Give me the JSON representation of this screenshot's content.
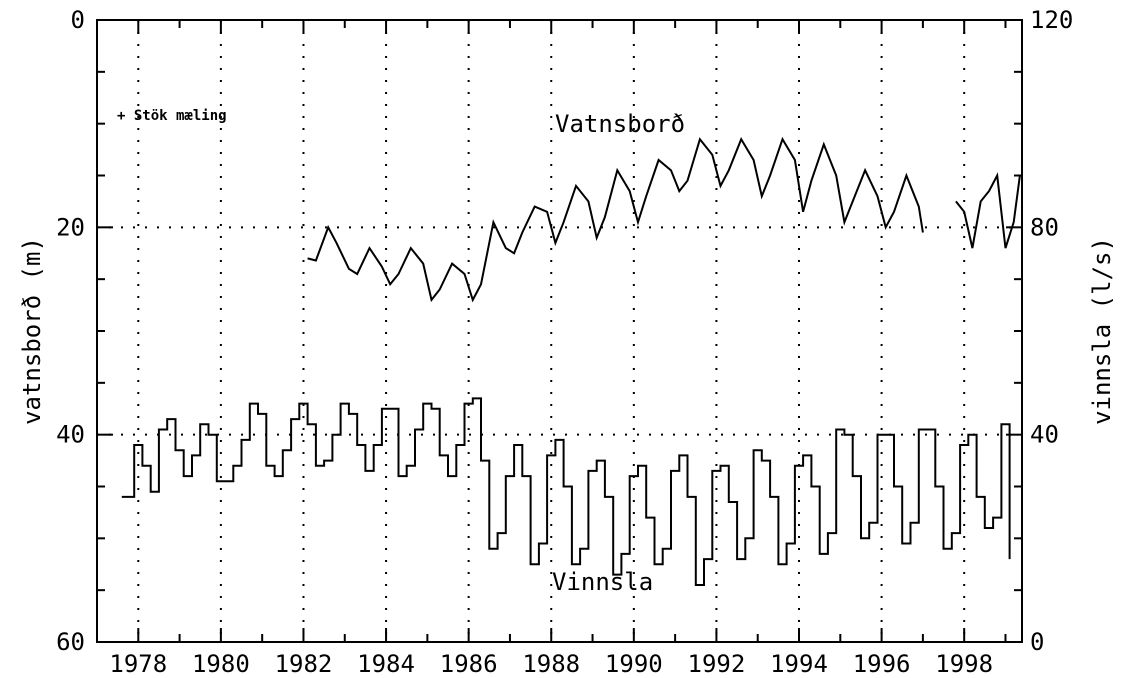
{
  "chart_data": {
    "type": "line",
    "title": "",
    "xlabel": "",
    "ylabel_left": "vatnsborð (m)",
    "ylabel_right": "vinnsla (l/s)",
    "xlim": [
      1977.0,
      1999.4
    ],
    "ylim_left": [
      0,
      60
    ],
    "ylim_left_inverted": true,
    "ylim_right": [
      0,
      120
    ],
    "x_ticks": [
      "1978",
      "1980",
      "1982",
      "1984",
      "1986",
      "1988",
      "1990",
      "1992",
      "1994",
      "1996",
      "1998"
    ],
    "y_left_ticks": [
      "0",
      "20",
      "40",
      "60"
    ],
    "y_right_ticks": [
      "120",
      "80",
      "40",
      "0"
    ],
    "grid": true,
    "annotation": "+ Stök mæling",
    "series": [
      {
        "name": "Vatnsborð",
        "axis": "left",
        "segments": [
          {
            "x": [
              1982.1,
              1982.3,
              1982.6,
              1982.8,
              1983.1,
              1983.3,
              1983.6,
              1983.9,
              1984.1,
              1984.3,
              1984.6,
              1984.9,
              1985.1,
              1985.3,
              1985.6,
              1985.9,
              1986.1,
              1986.3,
              1986.6,
              1986.9,
              1987.1,
              1987.3,
              1987.6,
              1987.9,
              1988.1,
              1988.3,
              1988.6,
              1988.9,
              1989.1,
              1989.3,
              1989.6,
              1989.9,
              1990.1,
              1990.3,
              1990.6,
              1990.9,
              1991.1,
              1991.3,
              1991.6,
              1991.9,
              1992.1,
              1992.3,
              1992.6,
              1992.9,
              1993.1,
              1993.3,
              1993.6,
              1993.9,
              1994.1,
              1994.3,
              1994.6,
              1994.9,
              1995.1,
              1995.3,
              1995.6,
              1995.9,
              1996.1,
              1996.3,
              1996.6,
              1996.9,
              1997.0
            ],
            "y": [
              23.0,
              23.2,
              20.0,
              21.5,
              24.0,
              24.5,
              22.0,
              23.8,
              25.5,
              24.5,
              22.0,
              23.5,
              27.0,
              26.0,
              23.5,
              24.5,
              27.0,
              25.5,
              19.5,
              22.0,
              22.5,
              20.5,
              18.0,
              18.5,
              21.5,
              19.5,
              16.0,
              17.5,
              21.0,
              19.0,
              14.5,
              16.5,
              19.5,
              17.0,
              13.5,
              14.5,
              16.5,
              15.5,
              11.5,
              13.0,
              16.0,
              14.5,
              11.5,
              13.5,
              17.0,
              15.0,
              11.5,
              13.5,
              18.5,
              15.5,
              12.0,
              15.0,
              19.5,
              17.5,
              14.5,
              17.0,
              20.0,
              18.5,
              15.0,
              18.0,
              20.5
            ]
          },
          {
            "x": [
              1997.8,
              1998.0,
              1998.2,
              1998.4,
              1998.6,
              1998.8,
              1999.0,
              1999.2,
              1999.35
            ],
            "y": [
              17.5,
              18.5,
              22.0,
              17.5,
              16.5,
              15.0,
              22.0,
              19.5,
              15.0
            ]
          }
        ]
      },
      {
        "name": "Vinnsla",
        "axis": "right",
        "step": true,
        "segments": [
          {
            "x": [
              1977.6,
              1977.9,
              1978.1,
              1978.3,
              1978.5,
              1978.7,
              1978.9,
              1979.1,
              1979.3,
              1979.5,
              1979.7,
              1979.9,
              1980.1,
              1980.3,
              1980.5,
              1980.7,
              1980.9,
              1981.1,
              1981.3,
              1981.5,
              1981.7,
              1981.9,
              1982.1,
              1982.3,
              1982.5,
              1982.7,
              1982.9,
              1983.1,
              1983.3,
              1983.5,
              1983.7,
              1983.9,
              1984.1,
              1984.3,
              1984.5,
              1984.7,
              1984.9,
              1985.1,
              1985.3,
              1985.5,
              1985.7,
              1985.9,
              1986.1,
              1986.3,
              1986.5,
              1986.7,
              1986.9,
              1987.1,
              1987.3,
              1987.5,
              1987.7,
              1987.9,
              1988.1,
              1988.3,
              1988.5,
              1988.7,
              1988.9,
              1989.1,
              1989.3,
              1989.5,
              1989.7,
              1989.9,
              1990.1,
              1990.3,
              1990.5,
              1990.7,
              1990.9,
              1991.1,
              1991.3,
              1991.5,
              1991.7,
              1991.9,
              1992.1,
              1992.3,
              1992.5,
              1992.7,
              1992.9,
              1993.1,
              1993.3,
              1993.5,
              1993.7,
              1993.9,
              1994.1,
              1994.3,
              1994.5,
              1994.7,
              1994.9,
              1995.1,
              1995.3,
              1995.5,
              1995.7,
              1995.9,
              1996.1,
              1996.3,
              1996.5,
              1996.7,
              1996.9,
              1997.1,
              1997.3,
              1997.5,
              1997.7,
              1997.9,
              1998.1,
              1998.3,
              1998.5,
              1998.7,
              1998.9,
              1999.1
            ],
            "y": [
              28,
              38,
              34,
              29,
              41,
              43,
              37,
              32,
              36,
              42,
              40,
              31,
              31,
              34,
              39,
              46,
              44,
              34,
              32,
              37,
              43,
              46,
              42,
              34,
              35,
              40,
              46,
              44,
              38,
              33,
              38,
              45,
              45,
              32,
              34,
              41,
              46,
              45,
              36,
              32,
              38,
              46,
              47,
              35,
              18,
              21,
              32,
              38,
              32,
              15,
              19,
              36,
              39,
              30,
              15,
              18,
              33,
              35,
              28,
              13,
              17,
              32,
              34,
              24,
              15,
              18,
              33,
              36,
              28,
              11,
              16,
              33,
              34,
              27,
              16,
              20,
              37,
              35,
              28,
              15,
              19,
              34,
              36,
              30,
              17,
              21,
              41,
              40,
              32,
              20,
              23,
              40,
              40,
              30,
              19,
              23,
              41,
              41,
              30,
              18,
              21,
              38,
              40,
              28,
              22,
              24,
              42,
              16
            ]
          }
        ]
      }
    ]
  }
}
